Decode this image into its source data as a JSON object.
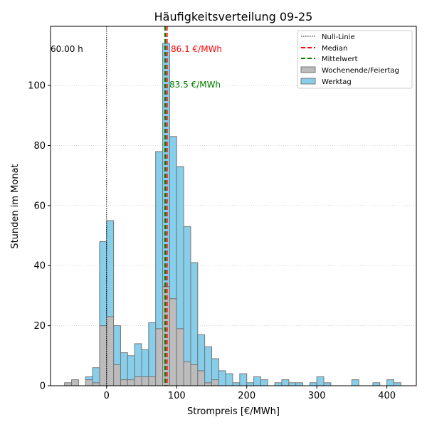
{
  "chart_data": {
    "type": "bar",
    "title": "Häufigkeitsverteilung 09-25",
    "xlabel": "Strompreis [€/MWh]",
    "ylabel": "Stunden im Monat",
    "xlim": [
      -80,
      442
    ],
    "ylim": [
      0,
      119.7
    ],
    "xticks": [
      0,
      100,
      200,
      300,
      400
    ],
    "yticks": [
      0,
      20,
      40,
      60,
      80,
      100
    ],
    "grid": "y-dotted",
    "legend_position": "top-right",
    "bin_width": 10,
    "bin_starts": [
      -60,
      -50,
      -40,
      -30,
      -20,
      -10,
      0,
      10,
      20,
      30,
      40,
      50,
      60,
      70,
      80,
      90,
      100,
      110,
      120,
      130,
      140,
      150,
      160,
      170,
      180,
      190,
      200,
      210,
      220,
      230,
      240,
      250,
      260,
      270,
      280,
      290,
      300,
      310,
      320,
      330,
      340,
      350,
      360,
      370,
      380,
      390,
      400,
      410
    ],
    "series": [
      {
        "name": "Wochenende/Feiertag",
        "color": "#bcbcbc",
        "values": [
          1,
          2,
          0,
          2,
          1,
          20,
          23,
          7,
          2,
          2,
          3,
          3,
          3,
          19,
          33,
          29,
          19,
          8,
          7,
          5,
          1,
          2,
          0,
          0,
          0,
          0,
          0,
          0,
          0,
          0,
          0,
          0,
          0,
          0,
          0,
          0,
          0,
          0,
          0,
          0,
          0,
          0,
          0,
          0,
          0,
          0,
          0,
          0
        ]
      },
      {
        "name": "Werktag",
        "color": "#87ceeb",
        "values": [
          0,
          0,
          0,
          1,
          5,
          28,
          32,
          13,
          9,
          8,
          11,
          9,
          18,
          59,
          81,
          54,
          54,
          45,
          34,
          12,
          12,
          7,
          5,
          4,
          1,
          4,
          1,
          3,
          2,
          0,
          1,
          2,
          1,
          1,
          0,
          1,
          3,
          1,
          0,
          0,
          0,
          2,
          0,
          0,
          1,
          0,
          2,
          1
        ]
      }
    ],
    "reference_lines": [
      {
        "name": "Null-Linie",
        "x": 0,
        "color": "#000000",
        "style": "dotted"
      },
      {
        "name": "Median",
        "x": 86.1,
        "color": "#ff0000",
        "style": "dashed"
      },
      {
        "name": "Mittelwert",
        "x": 83.5,
        "color": "#008000",
        "style": "dashed"
      }
    ],
    "annotations": {
      "zero_hours": "60.00 h",
      "median_label": "86.1 €/MWh",
      "mean_label": "83.5 €/MWh"
    }
  }
}
